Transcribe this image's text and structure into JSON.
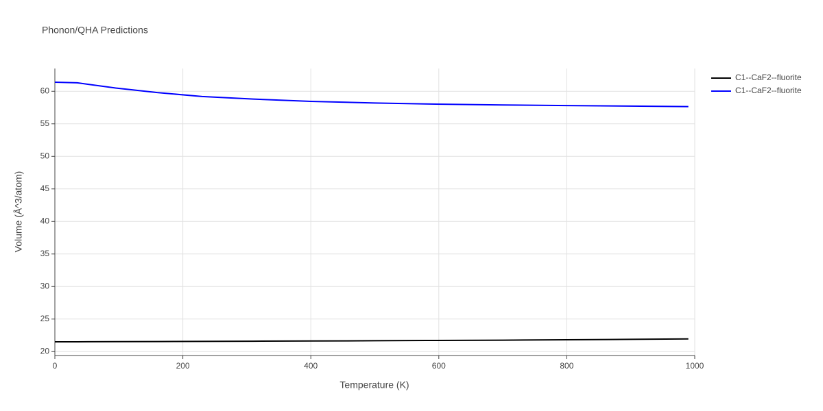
{
  "chart_data": {
    "type": "line",
    "title": "Phonon/QHA Predictions",
    "x_label": "Temperature (K)",
    "y_label": "Volume (Å^3/atom)",
    "x": [
      0,
      35,
      95,
      160,
      230,
      310,
      400,
      500,
      580,
      700,
      800,
      900,
      990
    ],
    "series": [
      {
        "name": "C1--CaF2--fluorite",
        "color": "#000000",
        "values": [
          21.5,
          21.51,
          21.53,
          21.55,
          21.57,
          21.6,
          21.63,
          21.67,
          21.71,
          21.76,
          21.82,
          21.88,
          21.95
        ]
      },
      {
        "name": "C1--CaF2--fluorite",
        "color": "#0000ff",
        "values": [
          61.4,
          61.3,
          60.5,
          59.8,
          59.2,
          58.8,
          58.45,
          58.2,
          58.05,
          57.9,
          57.8,
          57.72,
          57.65
        ]
      }
    ],
    "xlim": [
      0,
      1000
    ],
    "xticks": [
      0,
      200,
      400,
      600,
      800,
      1000
    ],
    "ylim": [
      19.4,
      63.5
    ],
    "yticks": [
      20,
      25,
      30,
      35,
      40,
      45,
      50,
      55,
      60
    ],
    "grid": true,
    "legend": "top-right"
  }
}
